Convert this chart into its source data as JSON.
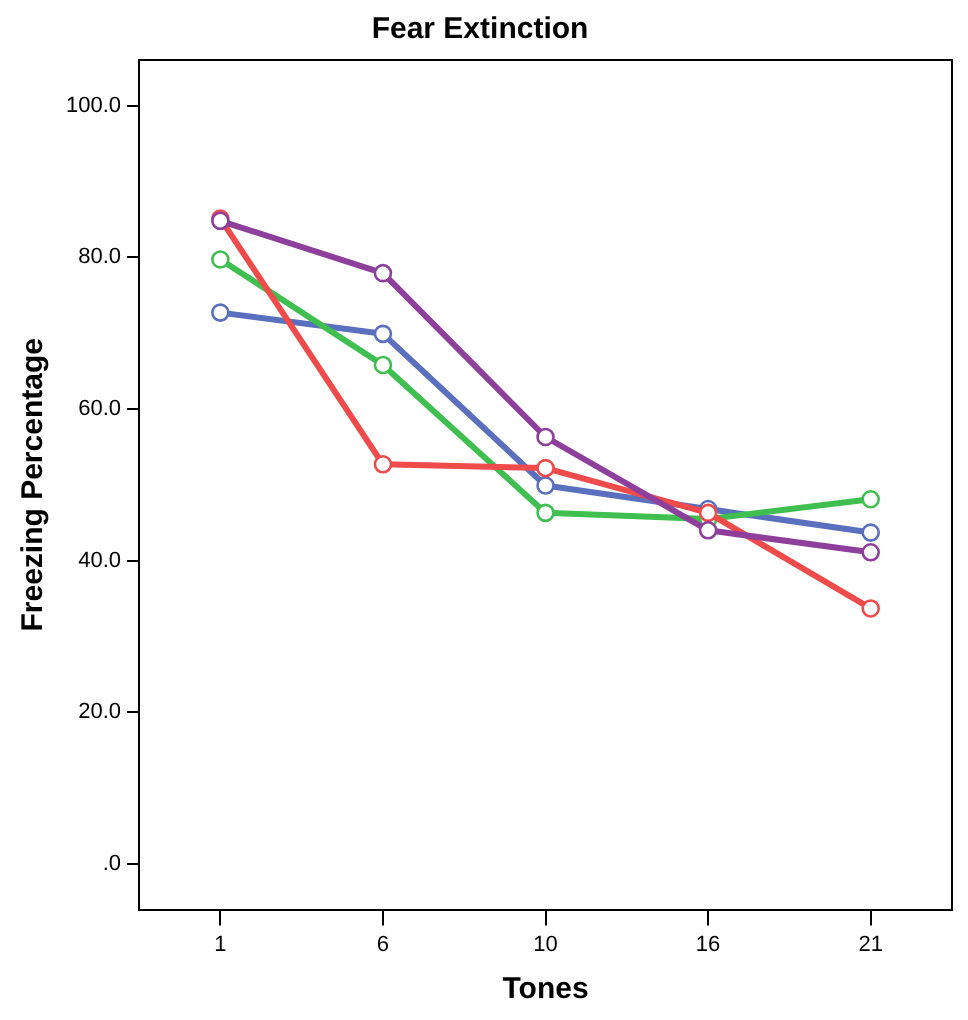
{
  "chart_data": {
    "type": "line",
    "title": "Fear Extinction",
    "xlabel": "Tones",
    "ylabel": "Freezing Percentage",
    "categories": [
      "1",
      "6",
      "10",
      "16",
      "21"
    ],
    "series": [
      {
        "color": "#5b6fbf",
        "values": [
          72.7,
          69.9,
          49.9,
          46.8,
          43.7
        ]
      },
      {
        "color": "#3fbf4f",
        "values": [
          79.7,
          65.8,
          46.3,
          45.5,
          48.1
        ]
      },
      {
        "color": "#f04b4b",
        "values": [
          85.1,
          52.7,
          52.2,
          46.3,
          33.7
        ]
      },
      {
        "color": "#8e3f9c",
        "values": [
          84.8,
          77.9,
          56.3,
          44.0,
          41.1
        ]
      }
    ],
    "ylim": [
      -6,
      106
    ],
    "yticks": [
      {
        "value": 0,
        "label": ".0"
      },
      {
        "value": 20,
        "label": "20.0"
      },
      {
        "value": 40,
        "label": "40.0"
      },
      {
        "value": 60,
        "label": "60.0"
      },
      {
        "value": 80,
        "label": "80.0"
      },
      {
        "value": 100,
        "label": "100.0"
      }
    ],
    "grid": false,
    "legend": false,
    "marker": "circle",
    "line_style": "solid"
  }
}
